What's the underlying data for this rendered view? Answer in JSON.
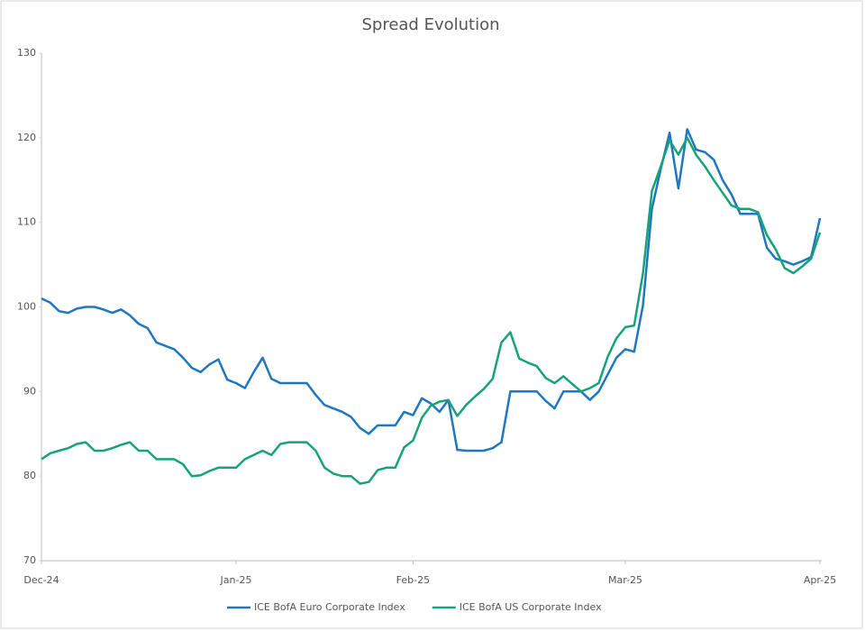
{
  "chart_data": {
    "type": "line",
    "title": "Spread Evolution",
    "categories": [
      "Dec-24",
      null,
      null,
      null,
      null,
      null,
      null,
      null,
      null,
      null,
      null,
      null,
      null,
      null,
      null,
      null,
      null,
      null,
      null,
      null,
      null,
      null,
      "Jan-25",
      null,
      null,
      null,
      null,
      null,
      null,
      null,
      null,
      null,
      null,
      null,
      null,
      null,
      null,
      null,
      null,
      null,
      null,
      null,
      "Feb-25",
      null,
      null,
      null,
      null,
      null,
      null,
      null,
      null,
      null,
      null,
      null,
      null,
      null,
      null,
      null,
      null,
      null,
      null,
      null,
      null,
      null,
      null,
      null,
      "Mar-25",
      null,
      null,
      null,
      null,
      null,
      null,
      null,
      null,
      null,
      null,
      null,
      null,
      null,
      null,
      null,
      null,
      null,
      null,
      null,
      null,
      null,
      "Apr-25"
    ],
    "series": [
      {
        "name": "ICE BofA Euro Corporate Index",
        "color": "#1f77c0",
        "values": [
          101,
          100.5,
          99.5,
          99.3,
          99.8,
          100,
          100,
          99.7,
          99.3,
          99.7,
          99,
          98,
          97.5,
          95.8,
          95.4,
          95,
          94,
          92.8,
          92.3,
          93.2,
          93.8,
          91.4,
          91,
          90.4,
          92.3,
          94,
          91.5,
          91,
          91,
          91,
          91,
          89.6,
          88.4,
          88,
          87.6,
          87,
          85.7,
          85,
          86,
          86,
          86,
          87.6,
          87.2,
          89.2,
          88.6,
          87.6,
          89,
          83.1,
          83,
          83,
          83,
          83.3,
          84,
          90,
          90,
          90,
          90,
          88.9,
          88,
          90,
          90,
          90,
          89,
          90,
          92,
          94,
          95,
          94.7,
          100.2,
          111.6,
          116.3,
          120.6,
          114,
          121,
          118.6,
          118.3,
          117.4,
          115,
          113.3,
          111,
          111,
          111,
          107,
          105.7,
          105.4,
          105,
          105.4,
          105.9,
          110.5
        ]
      },
      {
        "name": "ICE BofA US Corporate Index",
        "color": "#16a37a",
        "values": [
          82,
          82.7,
          83,
          83.3,
          83.8,
          84,
          83,
          83,
          83.3,
          83.7,
          84,
          83,
          83,
          82,
          82,
          82,
          81.4,
          80,
          80.1,
          80.6,
          81,
          81,
          81,
          82,
          82.5,
          83,
          82.5,
          83.8,
          84,
          84,
          84,
          83,
          81,
          80.3,
          80,
          80,
          79.1,
          79.3,
          80.7,
          81,
          81,
          83.4,
          84.2,
          86.9,
          88.3,
          88.8,
          89,
          87.1,
          88.4,
          89.4,
          90.3,
          91.5,
          95.8,
          97,
          93.9,
          93.4,
          93,
          91.6,
          91,
          91.8,
          90.9,
          90,
          90.4,
          91,
          94.1,
          96.3,
          97.6,
          97.8,
          104,
          113.7,
          116.6,
          119.7,
          118,
          120,
          118,
          116.6,
          115,
          113.5,
          112,
          111.6,
          111.6,
          111.2,
          108.5,
          106.8,
          104.6,
          104,
          104.8,
          105.7,
          108.8
        ]
      }
    ],
    "ylim": [
      70,
      130
    ],
    "yticks": [
      70,
      80,
      90,
      100,
      110,
      120,
      130
    ],
    "grid": false
  }
}
